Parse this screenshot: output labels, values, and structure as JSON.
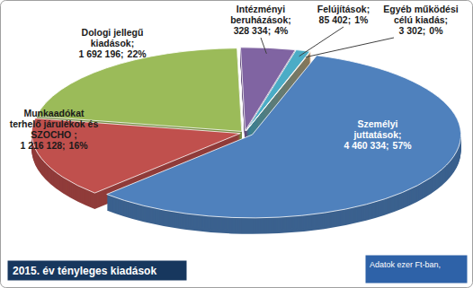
{
  "chart_data": {
    "type": "pie",
    "title": "2015. év tényleges kiadások",
    "annotation": "Adatok ezer Ft-ban,",
    "categories": [
      "Személyi juttatások;",
      "Munkaadókat terhelő járulékok és SZOCHO ;",
      "Dologi jellegű kiadások;",
      "Intézményi beruházások;",
      "Felújítások;",
      "Egyéb működési célú kiadás;"
    ],
    "values": [
      4460334,
      1216128,
      1692196,
      328334,
      85402,
      3302
    ],
    "value_labels": [
      "4 460 334;",
      "1 216 128;",
      "1 692 196;",
      "328 334;",
      "85 402;",
      "3 302;"
    ],
    "percent_labels": [
      "57%",
      "16%",
      "22%",
      "4%",
      "1%",
      "0%"
    ],
    "colors": [
      "#4f81bd",
      "#c0504d",
      "#9bbb59",
      "#8064a2",
      "#4bacc6",
      "#f79646"
    ],
    "data_labels": true
  }
}
